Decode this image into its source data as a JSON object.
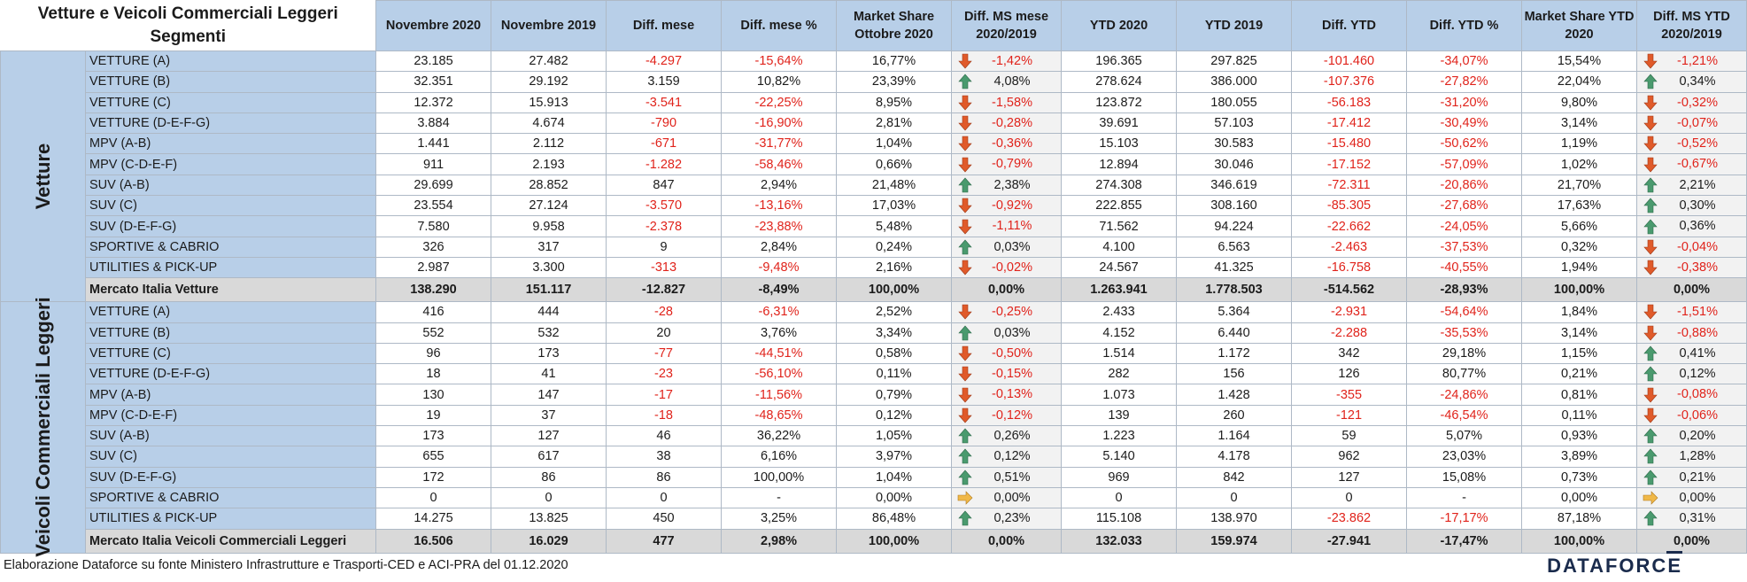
{
  "header": {
    "title_line1": "Vetture e Veicoli Commerciali Leggeri",
    "title_line2": "Segmenti",
    "cols": [
      "Novembre 2020",
      "Novembre 2019",
      "Diff. mese",
      "Diff. mese %",
      "Market Share Ottobre 2020",
      "Diff. MS mese 2020/2019",
      "YTD 2020",
      "YTD 2019",
      "Diff. YTD",
      "Diff. YTD %",
      "Market Share YTD 2020",
      "Diff. MS YTD 2020/2019"
    ]
  },
  "colors": {
    "up": "#4a9a6e",
    "down": "#e05a2a",
    "flat": "#f0b848",
    "neg": "#e0231b"
  },
  "groups": [
    {
      "label": "Vetture",
      "rows": [
        {
          "seg": "VETTURE (A)",
          "v": [
            "23.185",
            "27.482",
            "-4.297",
            "-15,64%",
            "16,77%",
            "-1,42%",
            "196.365",
            "297.825",
            "-101.460",
            "-34,07%",
            "15,54%",
            "-1,21%"
          ],
          "a1": "down",
          "a2": "down"
        },
        {
          "seg": "VETTURE (B)",
          "v": [
            "32.351",
            "29.192",
            "3.159",
            "10,82%",
            "23,39%",
            "4,08%",
            "278.624",
            "386.000",
            "-107.376",
            "-27,82%",
            "22,04%",
            "0,34%"
          ],
          "a1": "up",
          "a2": "up"
        },
        {
          "seg": "VETTURE (C)",
          "v": [
            "12.372",
            "15.913",
            "-3.541",
            "-22,25%",
            "8,95%",
            "-1,58%",
            "123.872",
            "180.055",
            "-56.183",
            "-31,20%",
            "9,80%",
            "-0,32%"
          ],
          "a1": "down",
          "a2": "down"
        },
        {
          "seg": "VETTURE (D-E-F-G)",
          "v": [
            "3.884",
            "4.674",
            "-790",
            "-16,90%",
            "2,81%",
            "-0,28%",
            "39.691",
            "57.103",
            "-17.412",
            "-30,49%",
            "3,14%",
            "-0,07%"
          ],
          "a1": "down",
          "a2": "down"
        },
        {
          "seg": "MPV (A-B)",
          "v": [
            "1.441",
            "2.112",
            "-671",
            "-31,77%",
            "1,04%",
            "-0,36%",
            "15.103",
            "30.583",
            "-15.480",
            "-50,62%",
            "1,19%",
            "-0,52%"
          ],
          "a1": "down",
          "a2": "down"
        },
        {
          "seg": "MPV (C-D-E-F)",
          "v": [
            "911",
            "2.193",
            "-1.282",
            "-58,46%",
            "0,66%",
            "-0,79%",
            "12.894",
            "30.046",
            "-17.152",
            "-57,09%",
            "1,02%",
            "-0,67%"
          ],
          "a1": "down",
          "a2": "down"
        },
        {
          "seg": "SUV (A-B)",
          "v": [
            "29.699",
            "28.852",
            "847",
            "2,94%",
            "21,48%",
            "2,38%",
            "274.308",
            "346.619",
            "-72.311",
            "-20,86%",
            "21,70%",
            "2,21%"
          ],
          "a1": "up",
          "a2": "up"
        },
        {
          "seg": "SUV (C)",
          "v": [
            "23.554",
            "27.124",
            "-3.570",
            "-13,16%",
            "17,03%",
            "-0,92%",
            "222.855",
            "308.160",
            "-85.305",
            "-27,68%",
            "17,63%",
            "0,30%"
          ],
          "a1": "down",
          "a2": "up"
        },
        {
          "seg": "SUV (D-E-F-G)",
          "v": [
            "7.580",
            "9.958",
            "-2.378",
            "-23,88%",
            "5,48%",
            "-1,11%",
            "71.562",
            "94.224",
            "-22.662",
            "-24,05%",
            "5,66%",
            "0,36%"
          ],
          "a1": "down",
          "a2": "up"
        },
        {
          "seg": "SPORTIVE & CABRIO",
          "v": [
            "326",
            "317",
            "9",
            "2,84%",
            "0,24%",
            "0,03%",
            "4.100",
            "6.563",
            "-2.463",
            "-37,53%",
            "0,32%",
            "-0,04%"
          ],
          "a1": "up",
          "a2": "down"
        },
        {
          "seg": "UTILITIES & PICK-UP",
          "v": [
            "2.987",
            "3.300",
            "-313",
            "-9,48%",
            "2,16%",
            "-0,02%",
            "24.567",
            "41.325",
            "-16.758",
            "-40,55%",
            "1,94%",
            "-0,38%"
          ],
          "a1": "down",
          "a2": "down"
        }
      ],
      "total": {
        "seg": "Mercato Italia Vetture",
        "v": [
          "138.290",
          "151.117",
          "-12.827",
          "-8,49%",
          "100,00%",
          "0,00%",
          "1.263.941",
          "1.778.503",
          "-514.562",
          "-28,93%",
          "100,00%",
          "0,00%"
        ]
      }
    },
    {
      "label": "Veicoli Commerciali Leggeri",
      "rows": [
        {
          "seg": "VETTURE (A)",
          "v": [
            "416",
            "444",
            "-28",
            "-6,31%",
            "2,52%",
            "-0,25%",
            "2.433",
            "5.364",
            "-2.931",
            "-54,64%",
            "1,84%",
            "-1,51%"
          ],
          "a1": "down",
          "a2": "down"
        },
        {
          "seg": "VETTURE (B)",
          "v": [
            "552",
            "532",
            "20",
            "3,76%",
            "3,34%",
            "0,03%",
            "4.152",
            "6.440",
            "-2.288",
            "-35,53%",
            "3,14%",
            "-0,88%"
          ],
          "a1": "up",
          "a2": "down"
        },
        {
          "seg": "VETTURE (C)",
          "v": [
            "96",
            "173",
            "-77",
            "-44,51%",
            "0,58%",
            "-0,50%",
            "1.514",
            "1.172",
            "342",
            "29,18%",
            "1,15%",
            "0,41%"
          ],
          "a1": "down",
          "a2": "up"
        },
        {
          "seg": "VETTURE (D-E-F-G)",
          "v": [
            "18",
            "41",
            "-23",
            "-56,10%",
            "0,11%",
            "-0,15%",
            "282",
            "156",
            "126",
            "80,77%",
            "0,21%",
            "0,12%"
          ],
          "a1": "down",
          "a2": "up"
        },
        {
          "seg": "MPV (A-B)",
          "v": [
            "130",
            "147",
            "-17",
            "-11,56%",
            "0,79%",
            "-0,13%",
            "1.073",
            "1.428",
            "-355",
            "-24,86%",
            "0,81%",
            "-0,08%"
          ],
          "a1": "down",
          "a2": "down"
        },
        {
          "seg": "MPV (C-D-E-F)",
          "v": [
            "19",
            "37",
            "-18",
            "-48,65%",
            "0,12%",
            "-0,12%",
            "139",
            "260",
            "-121",
            "-46,54%",
            "0,11%",
            "-0,06%"
          ],
          "a1": "down",
          "a2": "down"
        },
        {
          "seg": "SUV (A-B)",
          "v": [
            "173",
            "127",
            "46",
            "36,22%",
            "1,05%",
            "0,26%",
            "1.223",
            "1.164",
            "59",
            "5,07%",
            "0,93%",
            "0,20%"
          ],
          "a1": "up",
          "a2": "up"
        },
        {
          "seg": "SUV (C)",
          "v": [
            "655",
            "617",
            "38",
            "6,16%",
            "3,97%",
            "0,12%",
            "5.140",
            "4.178",
            "962",
            "23,03%",
            "3,89%",
            "1,28%"
          ],
          "a1": "up",
          "a2": "up"
        },
        {
          "seg": "SUV (D-E-F-G)",
          "v": [
            "172",
            "86",
            "86",
            "100,00%",
            "1,04%",
            "0,51%",
            "969",
            "842",
            "127",
            "15,08%",
            "0,73%",
            "0,21%"
          ],
          "a1": "up",
          "a2": "up"
        },
        {
          "seg": "SPORTIVE & CABRIO",
          "v": [
            "0",
            "0",
            "0",
            "-",
            "0,00%",
            "0,00%",
            "0",
            "0",
            "0",
            "-",
            "0,00%",
            "0,00%"
          ],
          "a1": "flat",
          "a2": "flat"
        },
        {
          "seg": "UTILITIES & PICK-UP",
          "v": [
            "14.275",
            "13.825",
            "450",
            "3,25%",
            "86,48%",
            "0,23%",
            "115.108",
            "138.970",
            "-23.862",
            "-17,17%",
            "87,18%",
            "0,31%"
          ],
          "a1": "up",
          "a2": "up"
        }
      ],
      "total": {
        "seg": "Mercato Italia Veicoli Commerciali Leggeri",
        "v": [
          "16.506",
          "16.029",
          "477",
          "2,98%",
          "100,00%",
          "0,00%",
          "132.033",
          "159.974",
          "-27.941",
          "-17,47%",
          "100,00%",
          "0,00%"
        ]
      }
    }
  ],
  "footer": {
    "note": "Elaborazione Dataforce su fonte Ministero Infrastrutture e Trasporti-CED e ACI-PRA del 01.12.2020",
    "logo": "DATAFORCE"
  }
}
